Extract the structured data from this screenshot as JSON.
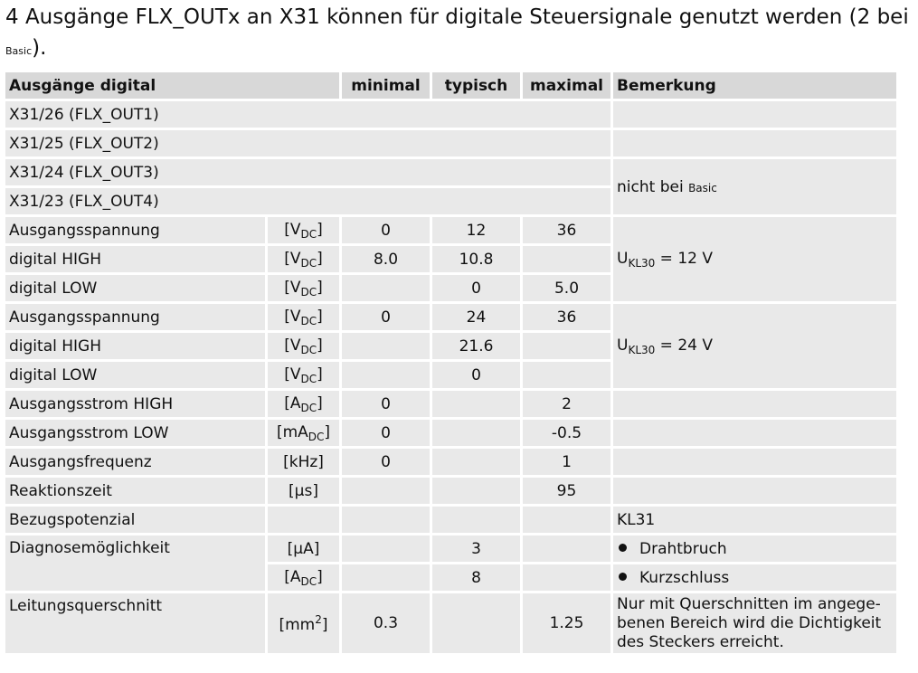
{
  "intro": {
    "text": "4 Ausgänge FLX_OUTx an X31 können für digitale Steuersignale genutzt werden (2 bei ",
    "small": "Basic",
    "end": ")."
  },
  "headers": {
    "param": "Ausgänge digital",
    "min": "minimal",
    "typ": "typisch",
    "max": "maximal",
    "remark": "Bemerkung"
  },
  "ports": [
    "X31/26 (FLX_OUT1)",
    "X31/25 (FLX_OUT2)",
    "X31/24 (FLX_OUT3)",
    "X31/23 (FLX_OUT4)"
  ],
  "port_remark": {
    "text": "nicht bei ",
    "small": "Basic"
  },
  "rows": [
    {
      "label": "Ausgangsspannung",
      "unit": "V",
      "unit_sub": "DC",
      "min": "0",
      "typ": "12",
      "max": "36"
    },
    {
      "label": "digital HIGH",
      "unit": "V",
      "unit_sub": "DC",
      "min": "8.0",
      "typ": "10.8",
      "max": ""
    },
    {
      "label": "digital LOW",
      "unit": "V",
      "unit_sub": "DC",
      "min": "",
      "typ": "0",
      "max": "5.0"
    },
    {
      "label": "Ausgangsspannung",
      "unit": "V",
      "unit_sub": "DC",
      "min": "0",
      "typ": "24",
      "max": "36"
    },
    {
      "label": "digital HIGH",
      "unit": "V",
      "unit_sub": "DC",
      "min": "",
      "typ": "21.6",
      "max": ""
    },
    {
      "label": "digital LOW",
      "unit": "V",
      "unit_sub": "DC",
      "min": "",
      "typ": "0",
      "max": ""
    },
    {
      "label": "Ausgangsstrom HIGH",
      "unit": "A",
      "unit_sub": "DC",
      "min": "0",
      "typ": "",
      "max": "2"
    },
    {
      "label": "Ausgangsstrom LOW",
      "unit": "mA",
      "unit_sub": "DC",
      "min": "0",
      "typ": "",
      "max": "-0.5"
    },
    {
      "label": "Ausgangsfrequenz",
      "unit": "kHz",
      "unit_sub": "",
      "min": "0",
      "typ": "",
      "max": "1"
    },
    {
      "label": "Reaktionszeit",
      "unit": "µs",
      "unit_sub": "",
      "min": "",
      "typ": "",
      "max": "95"
    },
    {
      "label": "Bezugspotenzial",
      "unit": "",
      "unit_sub": "",
      "min": "",
      "typ": "",
      "max": ""
    },
    {
      "label": "Diagnosemöglichkeit",
      "unit": "µA",
      "unit_sub": "",
      "min": "",
      "typ": "3",
      "max": ""
    },
    {
      "label": "",
      "unit": "A",
      "unit_sub": "DC",
      "min": "",
      "typ": "8",
      "max": ""
    },
    {
      "label": "Leitungsquerschnitt",
      "unit": "mm",
      "unit_sup": "2",
      "min": "0.3",
      "typ": "",
      "max": "1.25"
    }
  ],
  "remarks": {
    "u12_main": "U",
    "u12_sub": "KL30",
    "u12_val": " = 12 V",
    "u24_main": "U",
    "u24_sub": "KL30",
    "u24_val": " = 24 V",
    "kl31": "KL31",
    "drahtbruch": "Drahtbruch",
    "kurzschluss": "Kurzschluss",
    "querschnitt": "Nur mit Querschnitten im angege-benen Bereich wird die Dichtigkeit des Steckers erreicht."
  }
}
